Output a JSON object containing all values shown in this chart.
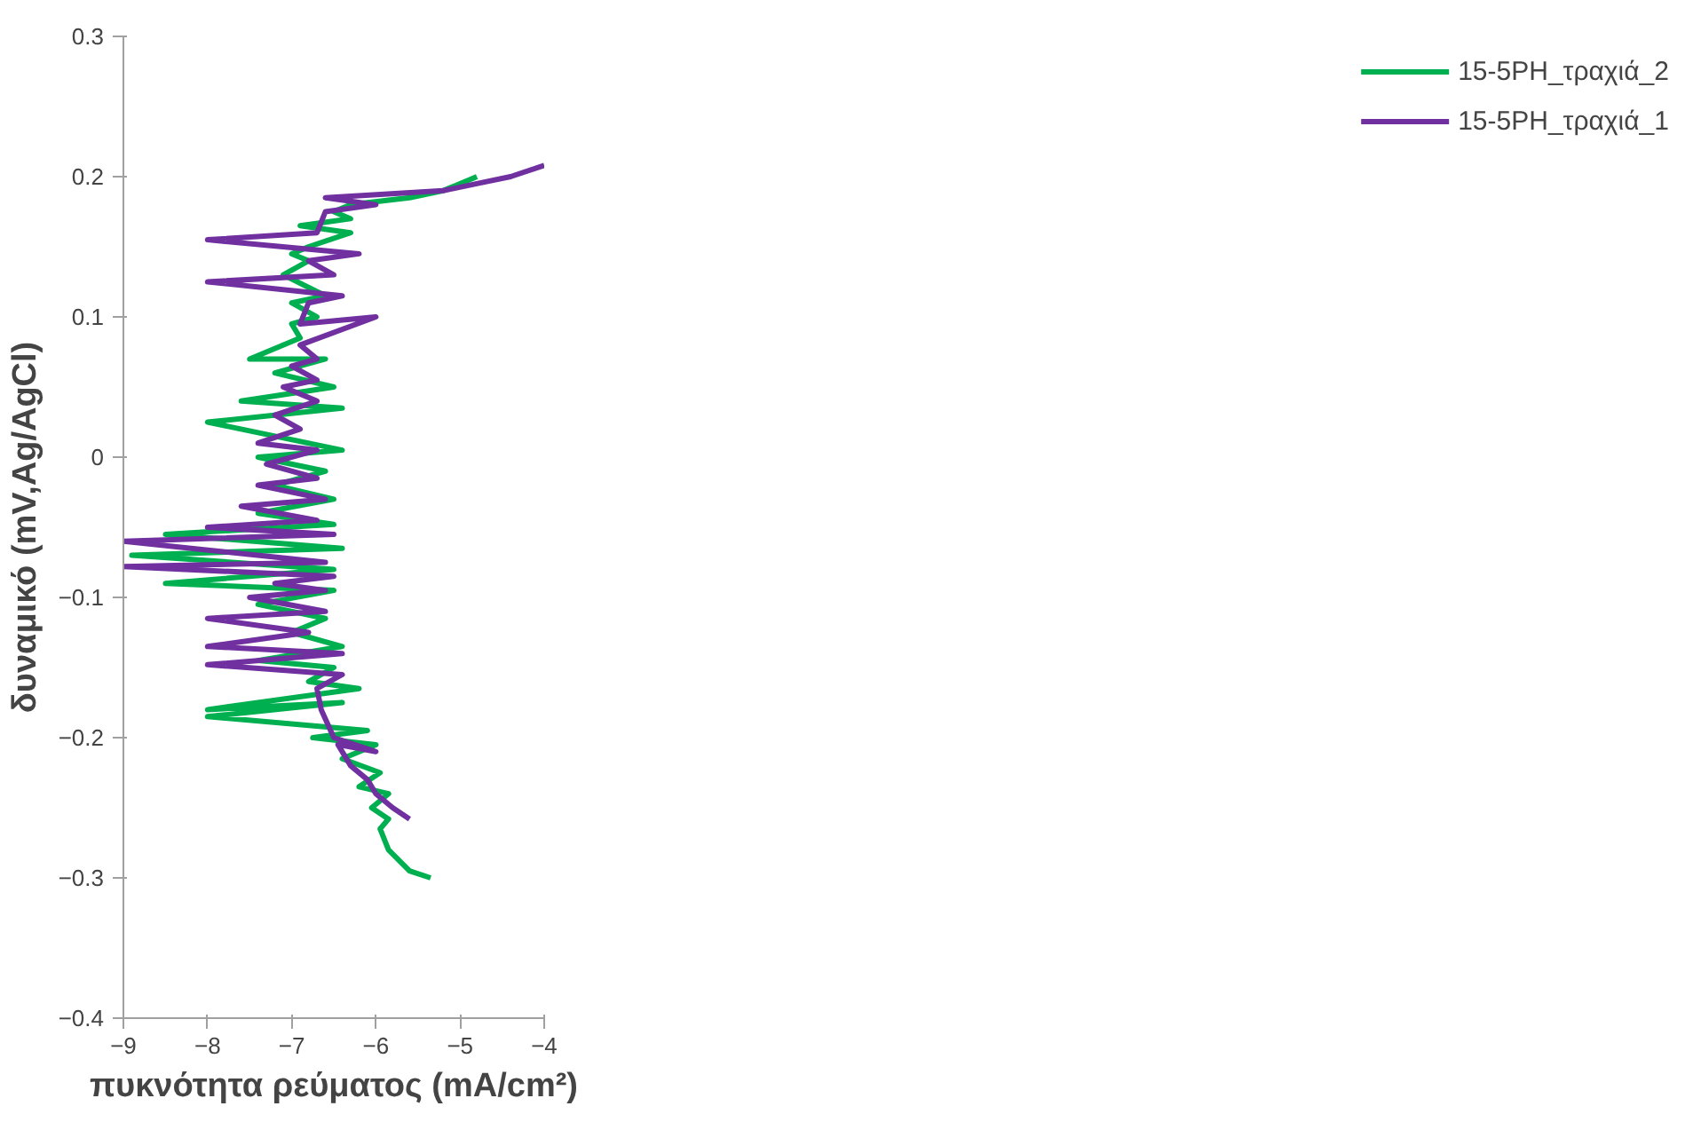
{
  "chart_data": {
    "type": "line",
    "xlabel": "πυκνότητα ρεύματος (mA/cm²)",
    "ylabel": "δυναμικό (mV,Ag/AgCl)",
    "xlim": [
      -9,
      -4
    ],
    "xticks": [
      -9,
      -8,
      -7,
      -6,
      -5,
      -4
    ],
    "ylim": [
      -0.4,
      0.3
    ],
    "yticks": [
      -0.4,
      -0.3,
      -0.2,
      -0.1,
      0,
      0.1,
      0.2,
      0.3
    ],
    "grid": false,
    "legend": "right",
    "marker": "none",
    "line_style": "solid",
    "series": [
      {
        "name": "15-5PH_τραχιά_2",
        "color": "#00b050",
        "x": [
          -5.35,
          -5.6,
          -5.85,
          -5.95,
          -5.85,
          -6.05,
          -5.85,
          -6.2,
          -5.95,
          -6.4,
          -6.0,
          -6.75,
          -6.1,
          -8.0,
          -6.4,
          -8.0,
          -6.2,
          -6.8,
          -6.5,
          -7.4,
          -6.4,
          -7.0,
          -6.6,
          -7.4,
          -6.5,
          -8.5,
          -6.5,
          -8.9,
          -6.4,
          -8.5,
          -6.5,
          -7.4,
          -6.5,
          -7.2,
          -6.6,
          -7.4,
          -6.4,
          -8.0,
          -6.4,
          -7.6,
          -6.5,
          -7.2,
          -6.6,
          -7.5,
          -6.9,
          -7.0,
          -6.7,
          -7.0,
          -6.6,
          -7.1,
          -6.8,
          -7.0,
          -6.8,
          -6.3,
          -6.9,
          -6.3,
          -6.5,
          -6.3,
          -5.6,
          -5.2,
          -4.8
        ],
        "values": [
          -0.3,
          -0.295,
          -0.28,
          -0.265,
          -0.258,
          -0.25,
          -0.24,
          -0.235,
          -0.225,
          -0.215,
          -0.205,
          -0.2,
          -0.195,
          -0.185,
          -0.175,
          -0.18,
          -0.165,
          -0.16,
          -0.15,
          -0.145,
          -0.135,
          -0.125,
          -0.115,
          -0.105,
          -0.095,
          -0.09,
          -0.08,
          -0.07,
          -0.065,
          -0.055,
          -0.048,
          -0.04,
          -0.03,
          -0.02,
          -0.01,
          0.0,
          0.005,
          0.025,
          0.035,
          0.04,
          0.05,
          0.06,
          0.07,
          0.07,
          0.085,
          0.095,
          0.1,
          0.11,
          0.115,
          0.13,
          0.14,
          0.145,
          0.15,
          0.16,
          0.165,
          0.17,
          0.175,
          0.18,
          0.185,
          0.19,
          0.2
        ]
      },
      {
        "name": "15-5PH_τραχιά_1",
        "color": "#7030a0",
        "x": [
          -5.6,
          -5.8,
          -6.0,
          -6.1,
          -6.3,
          -6.45,
          -6.0,
          -6.5,
          -6.65,
          -6.7,
          -6.4,
          -8.0,
          -6.4,
          -8.0,
          -6.8,
          -8.0,
          -6.6,
          -7.5,
          -6.6,
          -7.2,
          -6.5,
          -9.0,
          -6.6,
          -9.0,
          -6.5,
          -8.0,
          -6.7,
          -7.6,
          -6.6,
          -7.4,
          -6.7,
          -7.3,
          -6.7,
          -7.4,
          -6.9,
          -7.2,
          -6.7,
          -7.1,
          -6.7,
          -7.0,
          -6.7,
          -6.9,
          -6.0,
          -6.9,
          -6.8,
          -6.4,
          -8.0,
          -6.5,
          -6.8,
          -6.2,
          -8.0,
          -6.7,
          -6.6,
          -6.0,
          -6.6,
          -5.2,
          -4.8,
          -4.4,
          -4.0
        ],
        "values": [
          -0.258,
          -0.25,
          -0.24,
          -0.23,
          -0.22,
          -0.205,
          -0.21,
          -0.2,
          -0.18,
          -0.165,
          -0.155,
          -0.148,
          -0.14,
          -0.135,
          -0.125,
          -0.115,
          -0.11,
          -0.1,
          -0.095,
          -0.09,
          -0.085,
          -0.078,
          -0.075,
          -0.06,
          -0.055,
          -0.05,
          -0.045,
          -0.035,
          -0.03,
          -0.02,
          -0.015,
          -0.005,
          0.005,
          0.01,
          0.02,
          0.03,
          0.04,
          0.05,
          0.055,
          0.065,
          0.07,
          0.08,
          0.1,
          0.095,
          0.11,
          0.115,
          0.125,
          0.13,
          0.14,
          0.145,
          0.155,
          0.16,
          0.175,
          0.18,
          0.185,
          0.19,
          0.195,
          0.2,
          0.208
        ]
      }
    ]
  }
}
